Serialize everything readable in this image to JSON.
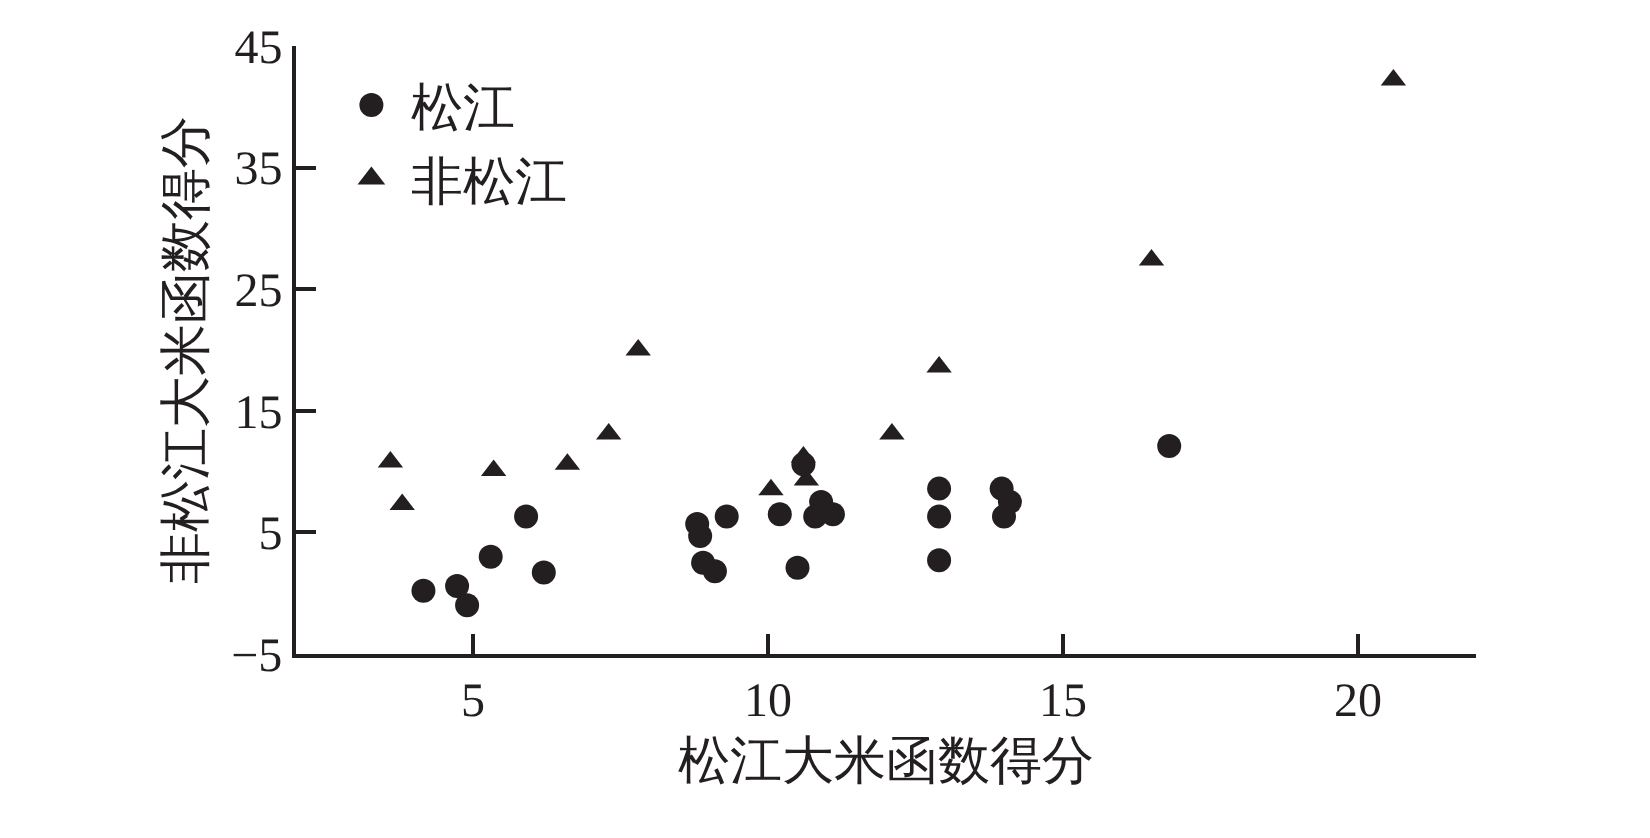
{
  "chart_data": {
    "type": "scatter",
    "xlabel": "松江大米函数得分",
    "ylabel": "非松江大米函数得分",
    "xlim": [
      2,
      22
    ],
    "xticks": [
      5,
      10,
      15,
      20
    ],
    "ylim": [
      -5,
      45
    ],
    "yticks": [
      -5,
      5,
      15,
      25,
      35,
      45
    ],
    "grid": false,
    "legend": "top left",
    "series": [
      {
        "name": "松江",
        "color": "#231f20",
        "marker": "circle",
        "x": [
          4.16,
          4.73,
          4.9,
          5.3,
          5.9,
          6.2,
          8.8,
          8.85,
          8.9,
          9.1,
          9.3,
          10.2,
          10.5,
          10.6,
          10.9,
          10.8,
          11.1,
          12.9,
          12.9,
          12.9,
          13.96,
          14.1,
          14.0,
          16.8
        ],
        "values": [
          0.2,
          0.6,
          -1.0,
          3.0,
          6.3,
          1.7,
          5.7,
          4.7,
          2.5,
          1.8,
          6.3,
          6.5,
          2.1,
          10.6,
          7.5,
          6.3,
          6.5,
          8.6,
          6.3,
          2.7,
          8.6,
          7.5,
          6.3,
          12.1
        ]
      },
      {
        "name": "非松江",
        "color": "#231f20",
        "marker": "triangle",
        "x": [
          3.6,
          3.8,
          5.35,
          6.6,
          7.3,
          7.8,
          10.05,
          10.6,
          10.65,
          12.1,
          12.9,
          16.5,
          20.6
        ],
        "values": [
          10.8,
          7.3,
          10.1,
          10.6,
          13.1,
          20.0,
          8.5,
          11.2,
          9.3,
          13.1,
          18.6,
          27.4,
          42.2
        ]
      }
    ]
  }
}
